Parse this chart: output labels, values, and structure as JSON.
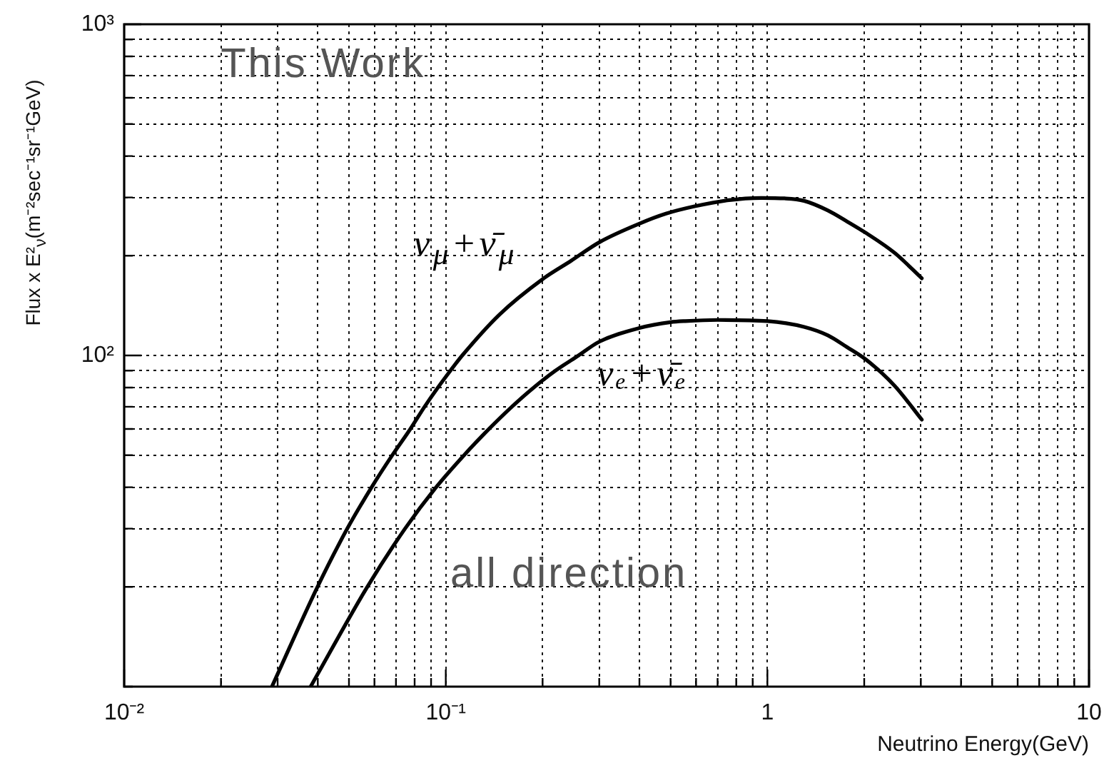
{
  "chart_data": {
    "type": "line",
    "xlabel": "Neutrino Energy(GeV)",
    "ylabel": "Flux x E²$_{ν}$(m⁻²sec⁻¹sr⁻¹GeV)",
    "log": "xy",
    "grid": true,
    "marker": "none",
    "xlim": [
      0.01,
      10
    ],
    "xticks": [
      {
        "value": 0.01,
        "label": "10⁻²"
      },
      {
        "value": 0.02,
        "label": null
      },
      {
        "value": 0.03,
        "label": null
      },
      {
        "value": 0.04,
        "label": null
      },
      {
        "value": 0.05,
        "label": null
      },
      {
        "value": 0.06,
        "label": null
      },
      {
        "value": 0.07,
        "label": null
      },
      {
        "value": 0.08,
        "label": null
      },
      {
        "value": 0.09,
        "label": null
      },
      {
        "value": 0.1,
        "label": "10⁻¹"
      },
      {
        "value": 0.2,
        "label": null
      },
      {
        "value": 0.3,
        "label": null
      },
      {
        "value": 0.4,
        "label": null
      },
      {
        "value": 0.5,
        "label": null
      },
      {
        "value": 0.6,
        "label": null
      },
      {
        "value": 0.7,
        "label": null
      },
      {
        "value": 0.8,
        "label": null
      },
      {
        "value": 0.9,
        "label": null
      },
      1,
      {
        "value": 2,
        "label": null
      },
      {
        "value": 3,
        "label": null
      },
      {
        "value": 4,
        "label": null
      },
      {
        "value": 5,
        "label": null
      },
      {
        "value": 6,
        "label": null
      },
      {
        "value": 7,
        "label": null
      },
      {
        "value": 8,
        "label": null
      },
      {
        "value": 9,
        "label": null
      },
      10
    ],
    "ylim": [
      10,
      1000
    ],
    "yticks": [
      {
        "value": 10,
        "label": null
      },
      {
        "value": 20,
        "label": null
      },
      {
        "value": 30,
        "label": null
      },
      {
        "value": 40,
        "label": null
      },
      {
        "value": 50,
        "label": null
      },
      {
        "value": 60,
        "label": null
      },
      {
        "value": 70,
        "label": null
      },
      {
        "value": 80,
        "label": null
      },
      {
        "value": 90,
        "label": null
      },
      {
        "value": 100,
        "label": "10²"
      },
      {
        "value": 200,
        "label": null
      },
      {
        "value": 300,
        "label": null
      },
      {
        "value": 400,
        "label": null
      },
      {
        "value": 500,
        "label": null
      },
      {
        "value": 600,
        "label": null
      },
      {
        "value": 700,
        "label": null
      },
      {
        "value": 800,
        "label": null
      },
      {
        "value": 900,
        "label": null
      },
      {
        "value": 1000,
        "label": "10³"
      }
    ],
    "annotations": [
      "This Work",
      "all direction"
    ],
    "series": [
      {
        "name": "ν$_{μ}$+ν̄$_{μ}$",
        "color": "#000000",
        "x": [
          0.0288,
          0.0399,
          0.0494,
          0.0588,
          0.0682,
          0.0776,
          0.0859,
          0.0945,
          0.1034,
          0.1125,
          0.147,
          0.2,
          0.245,
          0.301,
          0.4,
          0.484,
          0.594,
          0.75,
          0.957,
          1.13,
          1.3,
          1.542,
          1.767,
          2.03,
          2.486,
          3.02
        ],
        "values": [
          10,
          20,
          30,
          40,
          50,
          60,
          70,
          80,
          90,
          100,
          133,
          170,
          193,
          220,
          250,
          268,
          282,
          294,
          299,
          298,
          293,
          274,
          254,
          234,
          204,
          171
        ]
      },
      {
        "name": "νₑ+ν̄ₑ",
        "color": "#000000",
        "x": [
          0.038,
          0.057,
          0.0747,
          0.0933,
          0.114,
          0.1363,
          0.1605,
          0.1877,
          0.2195,
          0.2587,
          0.3,
          0.4,
          0.5,
          0.555,
          0.7,
          1,
          1.3,
          1.542,
          1.767,
          2.03,
          2.486,
          3.02
        ],
        "values": [
          10,
          20,
          30,
          40,
          50,
          60,
          70,
          80,
          90,
          100,
          110,
          121,
          126,
          127,
          128,
          127,
          122,
          115,
          106,
          97,
          81,
          64
        ]
      }
    ]
  }
}
